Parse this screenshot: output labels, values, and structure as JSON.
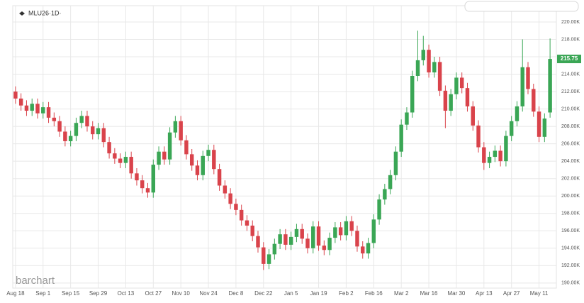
{
  "chart_data": {
    "type": "candlestick",
    "title": "MLU26·1D·",
    "watermark": "barchart",
    "categories": [
      "Aug 18",
      null,
      null,
      null,
      null,
      "Sep 1",
      null,
      null,
      null,
      null,
      "Sep 15",
      null,
      null,
      null,
      null,
      "Sep 29",
      null,
      null,
      null,
      null,
      "Oct 13",
      null,
      null,
      null,
      null,
      "Oct 27",
      null,
      null,
      null,
      null,
      "Nov 10",
      null,
      null,
      null,
      null,
      "Nov 24",
      null,
      null,
      null,
      null,
      "Dec 8",
      null,
      null,
      null,
      null,
      "Dec 22",
      null,
      null,
      null,
      null,
      "Jan 5",
      null,
      null,
      null,
      null,
      "Jan 19",
      null,
      null,
      null,
      null,
      "Feb 2",
      null,
      null,
      null,
      null,
      "Feb 16",
      null,
      null,
      null,
      null,
      "Mar 2",
      null,
      null,
      null,
      null,
      "Mar 16",
      null,
      null,
      null,
      null,
      "Mar 30",
      null,
      null,
      null,
      null,
      "Apr 13",
      null,
      null,
      null,
      null,
      "Apr 27",
      null,
      null,
      null,
      null,
      "May 11",
      null,
      null
    ],
    "open": [
      212.0,
      211.2,
      210.4,
      209.8,
      210.6,
      209.5,
      210.2,
      209.0,
      208.6,
      207.4,
      206.3,
      206.9,
      208.4,
      209.2,
      208.0,
      207.1,
      207.8,
      206.2,
      204.9,
      204.3,
      203.8,
      204.5,
      202.6,
      201.8,
      200.9,
      200.4,
      203.6,
      205.1,
      204.2,
      207.3,
      208.6,
      206.4,
      204.8,
      203.5,
      202.4,
      204.6,
      205.3,
      203.1,
      201.2,
      200.3,
      199.1,
      198.4,
      197.2,
      196.6,
      195.4,
      194.1,
      192.2,
      193.3,
      194.5,
      195.6,
      194.4,
      195.3,
      196.2,
      195.1,
      194.0,
      196.5,
      194.3,
      193.8,
      195.2,
      196.4,
      195.5,
      197.1,
      196.0,
      194.2,
      193.4,
      194.6,
      197.3,
      199.6,
      200.8,
      202.4,
      205.1,
      208.2,
      209.6,
      213.8,
      215.6,
      216.8,
      214.2,
      215.4,
      212.1,
      209.8,
      211.7,
      213.6,
      212.4,
      210.3,
      208.1,
      205.6,
      203.8,
      204.5,
      205.2,
      204.0,
      206.9,
      208.6,
      210.3,
      214.8,
      212.3,
      209.7,
      206.8,
      209.6
    ],
    "high": [
      212.6,
      211.8,
      211.0,
      211.2,
      211.2,
      210.8,
      210.8,
      209.6,
      209.2,
      208.0,
      207.5,
      209.0,
      209.8,
      209.8,
      208.6,
      208.4,
      208.4,
      206.8,
      205.5,
      204.9,
      205.1,
      205.1,
      203.2,
      202.4,
      201.5,
      204.2,
      205.7,
      205.7,
      207.9,
      209.2,
      209.2,
      207.0,
      205.4,
      204.1,
      205.2,
      205.9,
      205.9,
      203.7,
      201.8,
      200.9,
      199.7,
      199.0,
      197.8,
      197.2,
      196.0,
      194.7,
      193.9,
      195.1,
      196.2,
      196.2,
      195.9,
      196.8,
      196.8,
      195.7,
      197.1,
      197.1,
      194.9,
      195.8,
      197.0,
      197.0,
      197.7,
      197.7,
      196.6,
      194.8,
      195.2,
      197.9,
      200.2,
      201.4,
      203.0,
      205.7,
      208.8,
      210.2,
      214.4,
      219.0,
      218.4,
      217.4,
      216.0,
      216.0,
      212.7,
      212.3,
      214.2,
      214.2,
      213.0,
      210.9,
      208.7,
      206.2,
      205.1,
      205.8,
      205.8,
      207.5,
      209.2,
      210.9,
      218.0,
      215.4,
      212.9,
      210.3,
      209.5,
      218.1
    ],
    "low": [
      210.6,
      209.8,
      209.2,
      209.2,
      208.9,
      208.9,
      208.4,
      208.0,
      206.8,
      205.7,
      205.7,
      206.3,
      207.8,
      207.4,
      206.5,
      206.5,
      205.6,
      204.3,
      203.7,
      203.2,
      203.2,
      202.0,
      201.2,
      200.3,
      199.8,
      199.8,
      203.0,
      203.6,
      203.6,
      206.7,
      205.8,
      204.2,
      202.9,
      201.8,
      201.8,
      204.0,
      202.5,
      200.6,
      199.7,
      198.5,
      197.8,
      196.6,
      196.0,
      194.8,
      193.5,
      191.5,
      191.6,
      192.7,
      193.9,
      193.8,
      193.8,
      194.7,
      194.5,
      193.4,
      193.4,
      193.7,
      193.2,
      193.2,
      194.6,
      194.9,
      194.9,
      195.4,
      193.6,
      192.8,
      192.8,
      194.0,
      196.7,
      199.0,
      200.2,
      201.8,
      204.5,
      207.6,
      209.0,
      213.2,
      215.0,
      213.6,
      213.6,
      211.5,
      207.8,
      209.2,
      211.1,
      211.8,
      209.7,
      207.5,
      205.0,
      203.0,
      203.2,
      203.9,
      203.4,
      203.4,
      206.3,
      208.0,
      209.7,
      211.7,
      209.1,
      206.2,
      206.2,
      209.0
    ],
    "close": [
      211.2,
      210.4,
      209.8,
      210.6,
      209.5,
      210.2,
      209.0,
      208.6,
      207.4,
      206.3,
      206.9,
      208.4,
      209.2,
      208.0,
      207.1,
      207.8,
      206.2,
      204.9,
      204.3,
      203.8,
      204.5,
      202.6,
      201.8,
      200.9,
      200.4,
      203.6,
      205.1,
      204.2,
      207.3,
      208.6,
      206.4,
      204.8,
      203.5,
      202.4,
      204.6,
      205.3,
      203.1,
      201.2,
      200.3,
      199.1,
      198.4,
      197.2,
      196.6,
      195.4,
      194.1,
      192.2,
      193.3,
      194.5,
      195.6,
      194.4,
      195.3,
      196.2,
      195.1,
      194.0,
      196.5,
      194.3,
      193.8,
      195.2,
      196.4,
      195.5,
      197.1,
      196.0,
      194.2,
      193.4,
      194.6,
      197.3,
      199.6,
      200.8,
      202.4,
      205.1,
      208.2,
      209.6,
      213.8,
      215.6,
      216.8,
      214.2,
      215.4,
      212.1,
      209.8,
      211.7,
      213.6,
      212.4,
      210.3,
      208.1,
      205.6,
      203.8,
      204.5,
      205.2,
      204.0,
      206.9,
      208.6,
      210.3,
      214.8,
      212.3,
      209.7,
      206.8,
      208.9,
      215.75
    ],
    "up_color": "#3aa655",
    "down_color": "#d9434b",
    "last_price": 215.75,
    "ylim": [
      189.5,
      221.3
    ],
    "yticks": [
      {
        "value": 190,
        "label": "190.00K"
      },
      {
        "value": 192,
        "label": "192.00K"
      },
      {
        "value": 194,
        "label": "194.00K"
      },
      {
        "value": 196,
        "label": "196.00K"
      },
      {
        "value": 198,
        "label": "198.00K"
      },
      {
        "value": 200,
        "label": "200.00K"
      },
      {
        "value": 202,
        "label": "202.00K"
      },
      {
        "value": 204,
        "label": "204.00K"
      },
      {
        "value": 206,
        "label": "206.00K"
      },
      {
        "value": 208,
        "label": "208.00K"
      },
      {
        "value": 210,
        "label": "210.00K"
      },
      {
        "value": 212,
        "label": "212.00K"
      },
      {
        "value": 214,
        "label": "214.00K"
      },
      {
        "value": 216,
        "label": "216.00K"
      },
      {
        "value": 218,
        "label": "218.00K"
      },
      {
        "value": 220,
        "label": "220.00K"
      }
    ],
    "grid": true
  }
}
